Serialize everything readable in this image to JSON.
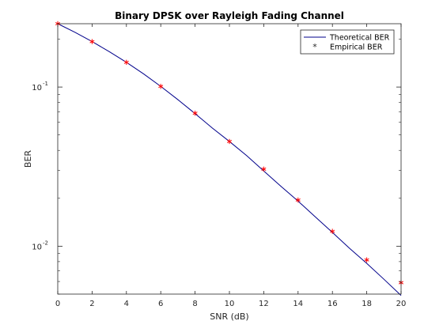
{
  "chart_data": {
    "type": "line",
    "title": "Binary DPSK over Rayleigh Fading Channel",
    "xlabel": "SNR (dB)",
    "ylabel": "BER",
    "xlim": [
      0,
      20
    ],
    "ylim": [
      0.005,
      0.25
    ],
    "y_scale": "log",
    "grid": false,
    "legend_position": "top-right",
    "x_ticks": [
      "0",
      "2",
      "4",
      "6",
      "8",
      "10",
      "12",
      "14",
      "16",
      "18",
      "20"
    ],
    "y_ticks": [
      {
        "value": 0.1,
        "base": "10",
        "exp": "-1"
      },
      {
        "value": 0.01,
        "base": "10",
        "exp": "-2"
      }
    ],
    "series": [
      {
        "name": "Theoretical BER",
        "style": "line",
        "color": "#00008b",
        "x": [
          0,
          1,
          2,
          3,
          4,
          5,
          6,
          7,
          8,
          9,
          10,
          11,
          12,
          13,
          14,
          15,
          16,
          17,
          18,
          19,
          20
        ],
        "y": [
          0.25,
          0.221,
          0.193,
          0.167,
          0.143,
          0.121,
          0.101,
          0.0833,
          0.0681,
          0.0553,
          0.0455,
          0.0371,
          0.0297,
          0.0238,
          0.0192,
          0.0153,
          0.0122,
          0.0097,
          0.0078,
          0.0062,
          0.0049
        ]
      },
      {
        "name": "Empirical BER",
        "style": "marker",
        "marker": "*",
        "color": "#ff0000",
        "x": [
          0,
          2,
          4,
          6,
          8,
          10,
          12,
          14,
          16,
          18,
          20
        ],
        "y": [
          0.25,
          0.193,
          0.143,
          0.101,
          0.0685,
          0.0455,
          0.0305,
          0.0195,
          0.0124,
          0.0082,
          0.0059
        ]
      }
    ]
  }
}
